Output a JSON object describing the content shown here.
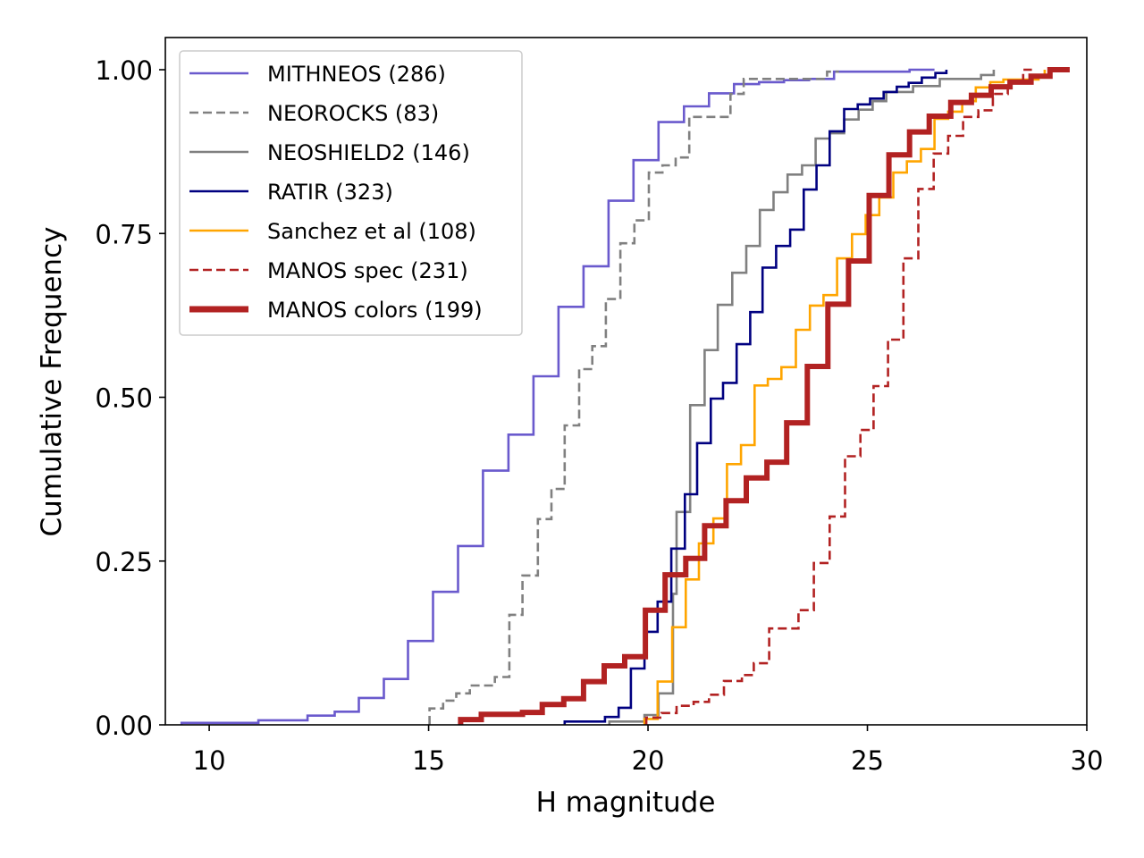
{
  "chart_data": {
    "type": "line",
    "subtype": "cumulative-step",
    "title": "",
    "xlabel": "H magnitude",
    "ylabel": "Cumulative Frequency",
    "xlim": [
      9,
      30
    ],
    "ylim": [
      0,
      1.05
    ],
    "xticks": [
      10,
      15,
      20,
      25,
      30
    ],
    "xtick_labels": [
      "10",
      "15",
      "20",
      "25",
      "30"
    ],
    "yticks": [
      0,
      0.25,
      0.5,
      0.75,
      1.0
    ],
    "ytick_labels": [
      "0.00",
      "0.25",
      "0.50",
      "0.75",
      "1.00"
    ],
    "grid": false,
    "legend_position": "upper-left",
    "series": [
      {
        "name": "MITHNEOS (286)",
        "color": "#6a5acd",
        "style": "solid",
        "weight": "normal",
        "x": [
          9.37,
          11.12,
          12.24,
          12.86,
          13.41,
          13.98,
          14.53,
          15.1,
          15.67,
          16.24,
          16.82,
          17.39,
          17.96,
          18.53,
          19.1,
          19.67,
          20.24,
          20.82,
          21.39,
          21.96,
          22.53,
          23.1,
          23.67,
          24.24,
          25.96,
          26.53
        ],
        "y": [
          0.003,
          0.007,
          0.014,
          0.02,
          0.041,
          0.07,
          0.128,
          0.203,
          0.273,
          0.388,
          0.443,
          0.532,
          0.638,
          0.7,
          0.8,
          0.862,
          0.92,
          0.944,
          0.964,
          0.978,
          0.981,
          0.984,
          0.986,
          0.997,
          1.0,
          1.0
        ]
      },
      {
        "name": "NEOROCKS (83)",
        "color": "#808080",
        "style": "dashed",
        "weight": "normal",
        "x": [
          15.02,
          15.33,
          15.63,
          15.94,
          16.51,
          16.84,
          17.14,
          17.49,
          17.8,
          18.1,
          18.43,
          18.73,
          19.04,
          19.37,
          19.69,
          20.02,
          20.33,
          20.63,
          20.94,
          21.88,
          22.18,
          24.08,
          24.35
        ],
        "y": [
          0.025,
          0.037,
          0.048,
          0.06,
          0.073,
          0.168,
          0.228,
          0.314,
          0.36,
          0.457,
          0.543,
          0.578,
          0.65,
          0.735,
          0.77,
          0.843,
          0.854,
          0.866,
          0.928,
          0.963,
          0.986,
          0.997,
          0.997
        ]
      },
      {
        "name": "NEOSHIELD2 (146)",
        "color": "#808080",
        "style": "solid",
        "weight": "normal",
        "x": [
          19.12,
          19.92,
          20.24,
          20.57,
          20.65,
          20.96,
          21.29,
          21.59,
          21.92,
          22.24,
          22.55,
          22.86,
          23.18,
          23.51,
          23.82,
          24.14,
          24.47,
          24.8,
          25.12,
          25.43,
          26.04,
          26.65,
          27.59,
          27.88
        ],
        "y": [
          0.005,
          0.015,
          0.048,
          0.2,
          0.325,
          0.488,
          0.572,
          0.641,
          0.69,
          0.731,
          0.786,
          0.813,
          0.84,
          0.854,
          0.895,
          0.903,
          0.924,
          0.939,
          0.952,
          0.966,
          0.975,
          0.986,
          0.992,
          1.0
        ]
      },
      {
        "name": "RATIR (323)",
        "color": "#000080",
        "style": "solid",
        "weight": "normal",
        "x": [
          18.1,
          19.02,
          19.33,
          19.61,
          19.92,
          20.22,
          20.53,
          20.84,
          21.12,
          21.43,
          21.71,
          22.02,
          22.33,
          22.61,
          22.92,
          23.24,
          23.55,
          23.84,
          24.14,
          24.47,
          24.78,
          25.06,
          25.37,
          25.67,
          25.94,
          26.24,
          26.55,
          26.8
        ],
        "y": [
          0.005,
          0.012,
          0.026,
          0.086,
          0.142,
          0.188,
          0.269,
          0.352,
          0.43,
          0.498,
          0.522,
          0.581,
          0.63,
          0.698,
          0.731,
          0.756,
          0.817,
          0.854,
          0.906,
          0.94,
          0.947,
          0.956,
          0.966,
          0.974,
          0.98,
          0.988,
          0.995,
          1.0
        ]
      },
      {
        "name": "Sanchez et al (108)",
        "color": "#ffa500",
        "style": "solid",
        "weight": "normal",
        "x": [
          19.92,
          20.22,
          20.55,
          20.86,
          21.16,
          21.49,
          21.8,
          22.12,
          22.43,
          22.73,
          23.04,
          23.37,
          23.69,
          24.0,
          24.31,
          24.65,
          24.96,
          25.27,
          25.59,
          25.9,
          26.22,
          26.53,
          26.84,
          27.16,
          27.47,
          27.8,
          28.1,
          28.9,
          29.04
        ],
        "y": [
          0.009,
          0.066,
          0.149,
          0.222,
          0.277,
          0.315,
          0.398,
          0.427,
          0.518,
          0.528,
          0.546,
          0.603,
          0.64,
          0.656,
          0.712,
          0.749,
          0.778,
          0.805,
          0.843,
          0.86,
          0.879,
          0.925,
          0.936,
          0.952,
          0.973,
          0.981,
          0.985,
          0.99,
          1.0
        ]
      },
      {
        "name": "MANOS spec (231)",
        "color": "#b22222",
        "style": "dashed",
        "weight": "normal",
        "x": [
          19.96,
          20.31,
          20.65,
          21.04,
          21.39,
          21.73,
          22.14,
          22.41,
          22.76,
          23.43,
          23.78,
          24.14,
          24.49,
          24.84,
          25.14,
          25.47,
          25.82,
          26.16,
          26.51,
          26.84,
          27.18,
          27.53,
          27.86,
          28.2,
          28.55,
          28.75
        ],
        "y": [
          0.011,
          0.018,
          0.029,
          0.035,
          0.046,
          0.067,
          0.076,
          0.094,
          0.147,
          0.175,
          0.247,
          0.318,
          0.41,
          0.45,
          0.517,
          0.588,
          0.712,
          0.818,
          0.872,
          0.899,
          0.928,
          0.938,
          0.963,
          0.98,
          1.0,
          1.0
        ]
      },
      {
        "name": "MANOS colors (199)",
        "color": "#b22222",
        "style": "solid",
        "weight": "bold",
        "x": [
          15.73,
          16.2,
          17.14,
          17.59,
          18.08,
          18.53,
          19.0,
          19.47,
          19.94,
          20.39,
          20.86,
          21.29,
          21.78,
          22.24,
          22.71,
          23.16,
          23.63,
          24.1,
          24.57,
          25.04,
          25.49,
          25.96,
          26.41,
          26.9,
          27.37,
          27.82,
          28.25,
          28.73,
          29.16,
          29.61
        ],
        "y": [
          0.008,
          0.016,
          0.019,
          0.031,
          0.04,
          0.066,
          0.09,
          0.104,
          0.175,
          0.229,
          0.254,
          0.304,
          0.342,
          0.377,
          0.401,
          0.461,
          0.547,
          0.642,
          0.708,
          0.808,
          0.87,
          0.905,
          0.929,
          0.95,
          0.961,
          0.974,
          0.981,
          0.99,
          1.0,
          1.0
        ]
      }
    ]
  }
}
